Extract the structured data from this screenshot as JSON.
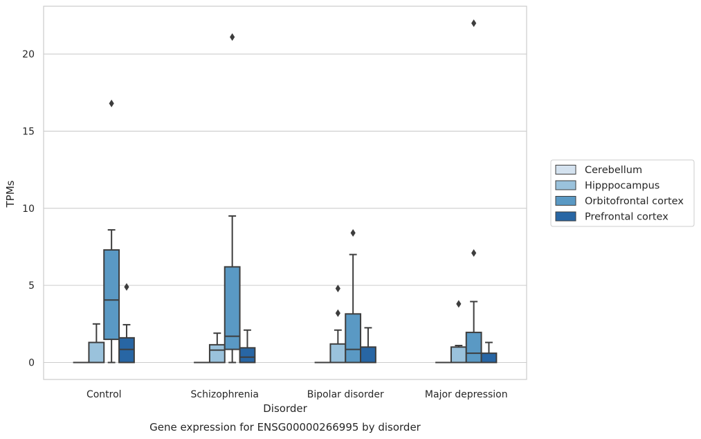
{
  "chart_data": {
    "type": "box",
    "title": "Gene expression for ENSG00000266995 by disorder",
    "xlabel": "Disorder",
    "ylabel": "TPMs",
    "categories": [
      "Control",
      "Schizophrenia",
      "Bipolar disorder",
      "Major depression"
    ],
    "ylim": [
      -1.1,
      23.1
    ],
    "yticks": [
      0,
      5,
      10,
      15,
      20
    ],
    "grid": true,
    "legend_position": "right",
    "series": [
      {
        "name": "Cerebellum",
        "color": "#d4e2ef",
        "boxes": [
          {
            "whislo": 0,
            "q1": 0,
            "med": 0,
            "q3": 0,
            "whishi": 0,
            "fliers": []
          },
          {
            "whislo": 0,
            "q1": 0,
            "med": 0,
            "q3": 0,
            "whishi": 0,
            "fliers": []
          },
          {
            "whislo": 0,
            "q1": 0,
            "med": 0,
            "q3": 0,
            "whishi": 0,
            "fliers": []
          },
          {
            "whislo": 0,
            "q1": 0,
            "med": 0,
            "q3": 0,
            "whishi": 0,
            "fliers": []
          }
        ]
      },
      {
        "name": "Hipppocampus",
        "color": "#9ac2dc",
        "boxes": [
          {
            "whislo": 0,
            "q1": 0,
            "med": 0,
            "q3": 1.3,
            "whishi": 2.5,
            "fliers": []
          },
          {
            "whislo": 0,
            "q1": 0,
            "med": 0.8,
            "q3": 1.15,
            "whishi": 1.9,
            "fliers": []
          },
          {
            "whislo": 0,
            "q1": 0,
            "med": 0,
            "q3": 1.2,
            "whishi": 2.1,
            "fliers": [
              3.2,
              4.8
            ]
          },
          {
            "whislo": 0,
            "q1": 0,
            "med": 0,
            "q3": 1.0,
            "whishi": 1.1,
            "fliers": [
              3.8
            ]
          }
        ]
      },
      {
        "name": "Orbitofrontal cortex",
        "color": "#5a99c4",
        "boxes": [
          {
            "whislo": 0,
            "q1": 1.5,
            "med": 4.05,
            "q3": 7.3,
            "whishi": 8.6,
            "fliers": [
              16.8
            ]
          },
          {
            "whislo": 0,
            "q1": 0.85,
            "med": 1.7,
            "q3": 6.2,
            "whishi": 9.5,
            "fliers": [
              21.1
            ]
          },
          {
            "whislo": 0,
            "q1": 0,
            "med": 0.85,
            "q3": 3.15,
            "whishi": 7.0,
            "fliers": [
              8.4
            ]
          },
          {
            "whislo": 0,
            "q1": 0,
            "med": 0.6,
            "q3": 1.95,
            "whishi": 3.95,
            "fliers": [
              7.1,
              22.0
            ]
          }
        ]
      },
      {
        "name": "Prefrontal cortex",
        "color": "#2866a4",
        "boxes": [
          {
            "whislo": 0,
            "q1": 0,
            "med": 0.85,
            "q3": 1.6,
            "whishi": 2.45,
            "fliers": [
              4.9
            ]
          },
          {
            "whislo": 0,
            "q1": 0,
            "med": 0.35,
            "q3": 0.95,
            "whishi": 2.1,
            "fliers": []
          },
          {
            "whislo": 0,
            "q1": 0,
            "med": 0,
            "q3": 1.0,
            "whishi": 2.25,
            "fliers": []
          },
          {
            "whislo": 0,
            "q1": 0,
            "med": 0,
            "q3": 0.6,
            "whishi": 1.3,
            "fliers": []
          }
        ]
      }
    ]
  }
}
